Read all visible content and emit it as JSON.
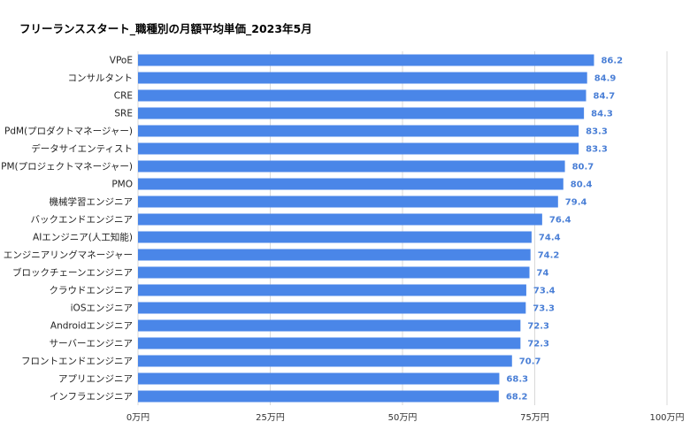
{
  "chart_data": {
    "type": "bar",
    "orientation": "horizontal",
    "title": "フリーランススタート_職種別の月額平均単価_2023年5月",
    "categories": [
      "VPoE",
      "コンサルタント",
      "CRE",
      "SRE",
      "PdM(プロダクトマネージャー)",
      "データサイエンティスト",
      "PM(プロジェクトマネージャー)",
      "PMO",
      "機械学習エンジニア",
      "バックエンドエンジニア",
      "AIエンジニア(人工知能)",
      "エンジニアリングマネージャー",
      "ブロックチェーンエンジニア",
      "クラウドエンジニア",
      "iOSエンジニア",
      "Androidエンジニア",
      "サーバーエンジニア",
      "フロントエンドエンジニア",
      "アプリエンジニア",
      "インフラエンジニア"
    ],
    "values": [
      86.2,
      84.9,
      84.7,
      84.3,
      83.3,
      83.3,
      80.7,
      80.4,
      79.4,
      76.4,
      74.4,
      74.2,
      74,
      73.4,
      73.3,
      72.3,
      72.3,
      70.7,
      68.3,
      68.2
    ],
    "value_labels": [
      "86.2",
      "84.9",
      "84.7",
      "84.3",
      "83.3",
      "83.3",
      "80.7",
      "80.4",
      "79.4",
      "76.4",
      "74.4",
      "74.2",
      "74",
      "73.4",
      "73.3",
      "72.3",
      "72.3",
      "70.7",
      "68.3",
      "68.2"
    ],
    "xlim": [
      0,
      100
    ],
    "x_ticks": [
      0,
      25,
      50,
      75,
      100
    ],
    "x_tick_labels": [
      "0万円",
      "25万円",
      "50万円",
      "75万円",
      "100万円"
    ],
    "grid": true,
    "colors": {
      "bar": "#4a86e8",
      "value_label": "#4a7fd6",
      "grid": "#d9d9d9"
    }
  }
}
